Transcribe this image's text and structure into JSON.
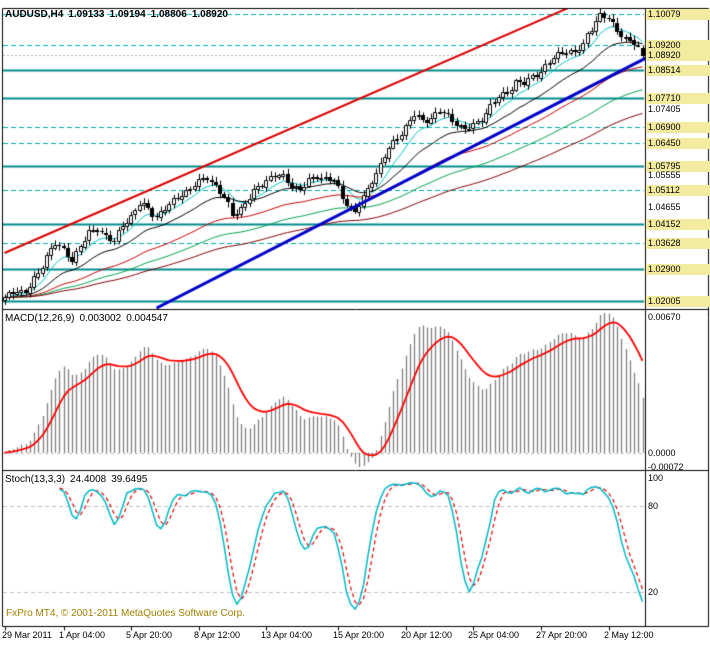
{
  "main_chart": {
    "title": {
      "symbol": "AUDUSD,H4",
      "open": "1.09133",
      "high": "1.09194",
      "low": "1.08806",
      "close": "1.08920"
    }
  },
  "macd_panel": {
    "title": {
      "name": "MACD(12,26,9)",
      "value": "0.003002",
      "signal": "0.004547"
    }
  },
  "stoch_panel": {
    "title": {
      "name": "Stoch(13,3,3)",
      "value": "24.4008",
      "signal": "39.6495"
    }
  },
  "footer": {
    "copyright": "FxPro MT4, © 2001-2011 MetaQuotes Software Corp."
  },
  "colors": {
    "background": "#FFFFFF",
    "border": "#000000",
    "text": "#000000",
    "highlight_bg": "#F3ECA0",
    "copyright": "#A08000",
    "level_solid": "#008B8B",
    "level_dashed": "#00ADAD",
    "price_line": "#B8B8B8",
    "candle_up": "#FFFFFF",
    "candle_down": "#000000",
    "candle_outline": "#000000",
    "grid_dashed": "#C0C0C0"
  },
  "chart_data": {
    "type": "candlestick",
    "symbol": "AUDUSD",
    "timeframe": "H4",
    "bars": 152,
    "y_range": [
      1.018,
      1.1022
    ],
    "last_bar": {
      "open": 1.09133,
      "high": 1.09194,
      "low": 1.08806,
      "close": 1.0892
    },
    "close_anchors": [
      [
        0,
        1.0205
      ],
      [
        3,
        1.0232
      ],
      [
        5,
        1.0225
      ],
      [
        8,
        1.0276
      ],
      [
        10,
        1.033
      ],
      [
        12,
        1.0362
      ],
      [
        14,
        1.034
      ],
      [
        16,
        1.0318
      ],
      [
        18,
        1.0356
      ],
      [
        20,
        1.0388
      ],
      [
        22,
        1.0406
      ],
      [
        24,
        1.0383
      ],
      [
        26,
        1.0365
      ],
      [
        28,
        1.0415
      ],
      [
        30,
        1.044
      ],
      [
        32,
        1.0472
      ],
      [
        34,
        1.0458
      ],
      [
        36,
        1.0438
      ],
      [
        38,
        1.046
      ],
      [
        40,
        1.048
      ],
      [
        42,
        1.0505
      ],
      [
        44,
        1.0516
      ],
      [
        46,
        1.0534
      ],
      [
        48,
        1.0552
      ],
      [
        50,
        1.0524
      ],
      [
        52,
        1.0488
      ],
      [
        54,
        1.0446
      ],
      [
        56,
        1.0462
      ],
      [
        58,
        1.049
      ],
      [
        60,
        1.052
      ],
      [
        62,
        1.0543
      ],
      [
        64,
        1.0552
      ],
      [
        66,
        1.0548
      ],
      [
        68,
        1.0528
      ],
      [
        70,
        1.0512
      ],
      [
        72,
        1.0536
      ],
      [
        74,
        1.0554
      ],
      [
        76,
        1.0546
      ],
      [
        78,
        1.0538
      ],
      [
        80,
        1.0492
      ],
      [
        83,
        1.045
      ],
      [
        85,
        1.0488
      ],
      [
        87,
        1.0542
      ],
      [
        89,
        1.0585
      ],
      [
        91,
        1.0628
      ],
      [
        93,
        1.066
      ],
      [
        95,
        1.0692
      ],
      [
        97,
        1.0724
      ],
      [
        99,
        1.0706
      ],
      [
        101,
        1.0718
      ],
      [
        103,
        1.0735
      ],
      [
        105,
        1.0718
      ],
      [
        107,
        1.0702
      ],
      [
        109,
        1.0682
      ],
      [
        111,
        1.0692
      ],
      [
        113,
        1.0714
      ],
      [
        115,
        1.075
      ],
      [
        117,
        1.0772
      ],
      [
        119,
        1.0788
      ],
      [
        121,
        1.0818
      ],
      [
        123,
        1.081
      ],
      [
        125,
        1.0832
      ],
      [
        127,
        1.085
      ],
      [
        129,
        1.0872
      ],
      [
        131,
        1.0892
      ],
      [
        133,
        1.091
      ],
      [
        135,
        1.0898
      ],
      [
        137,
        1.0918
      ],
      [
        138,
        1.095
      ],
      [
        140,
        1.0992
      ],
      [
        141,
        1.1004
      ],
      [
        143,
        1.0992
      ],
      [
        144,
        1.0975
      ],
      [
        146,
        1.0952
      ],
      [
        148,
        1.093
      ],
      [
        150,
        1.0913
      ],
      [
        151,
        1.0892
      ]
    ],
    "levels": [
      {
        "price": 1.10079,
        "label": "1.10079",
        "style": "dashed"
      },
      {
        "price": 1.092,
        "label": "1.09200",
        "style": "dashed"
      },
      {
        "price": 1.0892,
        "label": "1.08920",
        "style": "price"
      },
      {
        "price": 1.08514,
        "label": "1.08514",
        "style": "solid"
      },
      {
        "price": 1.0771,
        "label": "1.07710",
        "style": "solid"
      },
      {
        "price": 1.069,
        "label": "1.06900",
        "style": "dashed"
      },
      {
        "price": 1.0645,
        "label": "1.06450",
        "style": "dashed"
      },
      {
        "price": 1.05795,
        "label": "1.05795",
        "style": "solid"
      },
      {
        "price": 1.05112,
        "label": "1.05112",
        "style": "dashed"
      },
      {
        "price": 1.04152,
        "label": "1.04152",
        "style": "solid"
      },
      {
        "price": 1.03628,
        "label": "1.03628",
        "style": "dashed"
      },
      {
        "price": 1.029,
        "label": "1.02900",
        "style": "solid"
      },
      {
        "price": 1.02005,
        "label": "1.02005",
        "style": "solid"
      }
    ],
    "plain_axis_labels": [
      {
        "price": 1.07405,
        "label": "1.07405"
      },
      {
        "price": 1.05555,
        "label": "1.05555"
      },
      {
        "price": 1.04655,
        "label": "1.04655"
      }
    ],
    "trendlines": [
      {
        "name": "resistance-trendline",
        "color": "#D80000",
        "width": 2,
        "from": [
          0,
          1.0335
        ],
        "to": [
          135,
          1.1033
        ]
      },
      {
        "name": "support-trendline",
        "color": "#0000C8",
        "width": 3,
        "from": [
          36,
          1.018
        ],
        "to": [
          152,
          1.0885
        ]
      }
    ],
    "moving_averages": [
      {
        "period": 8,
        "color": "#00C4C4",
        "width": 1
      },
      {
        "period": 20,
        "color": "#000000",
        "width": 1
      },
      {
        "period": 45,
        "color": "#C80000",
        "width": 1
      },
      {
        "period": 70,
        "color": "#00A050",
        "width": 1
      },
      {
        "period": 100,
        "color": "#800000",
        "width": 1
      }
    ],
    "indicators": [
      {
        "type": "bar",
        "name": "MACD",
        "params": [
          12,
          26,
          9
        ],
        "current_values": [
          "0.003002",
          "0.004547"
        ],
        "y_range": [
          -0.00072,
          0.0067
        ],
        "axis_labels": [
          "0.00670",
          "0.0000",
          "-0.00072"
        ],
        "histogram_color": "#808080",
        "signal_color": "#FF0000"
      },
      {
        "type": "line",
        "name": "Stochastic",
        "params": [
          13,
          3,
          3
        ],
        "current_values": [
          "24.4008",
          "39.6495"
        ],
        "y_range": [
          0,
          100
        ],
        "axis_labels": [
          "100",
          "80",
          "20"
        ],
        "level_lines": [
          80,
          20
        ],
        "main_color": "#00B8C8",
        "signal_color": "#E00000"
      }
    ],
    "x_ticks": [
      {
        "label": "29 Mar 2011",
        "bar": 0
      },
      {
        "label": "1 Apr 04:00",
        "bar": 14
      },
      {
        "label": "5 Apr 20:00",
        "bar": 30
      },
      {
        "label": "8 Apr 12:00",
        "bar": 46
      },
      {
        "label": "13 Apr 04:00",
        "bar": 62
      },
      {
        "label": "15 Apr 20:00",
        "bar": 79
      },
      {
        "label": "20 Apr 12:00",
        "bar": 95
      },
      {
        "label": "25 Apr 04:00",
        "bar": 111
      },
      {
        "label": "27 Apr 20:00",
        "bar": 127
      },
      {
        "label": "2 May 12:00",
        "bar": 143
      }
    ]
  }
}
